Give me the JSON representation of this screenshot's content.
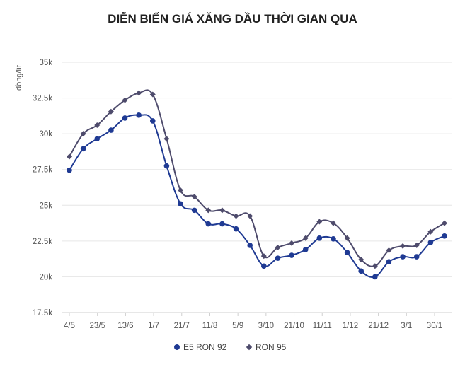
{
  "chart_data": {
    "type": "line",
    "title": "DIỄN BIẾN GIÁ XĂNG DẦU THỜI GIAN QUA",
    "xlabel": "",
    "ylabel": "đồng/lít",
    "ylim": [
      17500,
      35000
    ],
    "y_ticks": [
      17500,
      20000,
      22500,
      25000,
      27500,
      30000,
      32500,
      35000
    ],
    "y_tick_labels": [
      "17.5k",
      "20k",
      "22.5k",
      "25k",
      "27.5k",
      "30k",
      "32.5k",
      "35k"
    ],
    "x_tick_labels": [
      "4/5",
      "23/5",
      "13/6",
      "1/7",
      "21/7",
      "11/8",
      "5/9",
      "3/10",
      "21/10",
      "11/11",
      "1/12",
      "21/12",
      "3/1",
      "30/1"
    ],
    "grid": true,
    "legend_position": "bottom",
    "series": [
      {
        "name": "E5 RON 92",
        "color": "#1f3a93",
        "marker": "circle",
        "values": [
          27450,
          28950,
          29650,
          30250,
          31100,
          31300,
          30900,
          27750,
          25100,
          24650,
          23700,
          23700,
          23350,
          22200,
          20750,
          21300,
          21500,
          21900,
          22700,
          22650,
          21700,
          20400,
          20000,
          21050,
          21400,
          21400,
          22400,
          22850
        ]
      },
      {
        "name": "RON 95",
        "color": "#4e4b6c",
        "marker": "diamond",
        "values": [
          28400,
          30000,
          30600,
          31550,
          32350,
          32850,
          32750,
          29650,
          26050,
          25600,
          24650,
          24650,
          24250,
          24250,
          21450,
          22050,
          22350,
          22700,
          23850,
          23750,
          22700,
          21200,
          20750,
          21850,
          22150,
          22200,
          23150,
          23750
        ]
      }
    ]
  }
}
